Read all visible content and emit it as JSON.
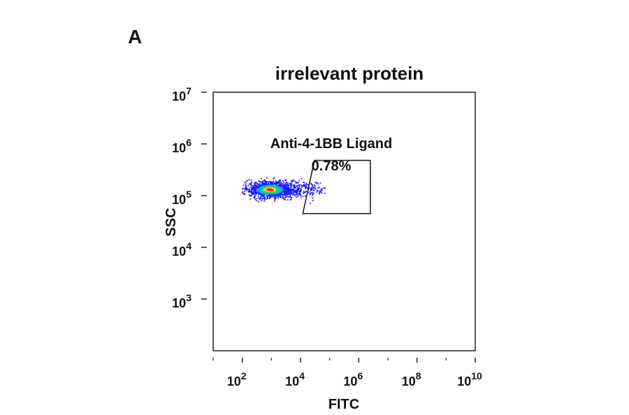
{
  "panel_label": "A",
  "chart_data": {
    "type": "scatter",
    "title": "irrelevant protein",
    "xlabel": "FITC",
    "ylabel": "SSC",
    "x_scale": "log",
    "y_scale": "log",
    "xlim": [
      10.0,
      10000000000.0
    ],
    "ylim": [
      100.0,
      10000000.0
    ],
    "x_ticks": [
      {
        "value": 100.0,
        "base": "10",
        "exp": "2"
      },
      {
        "value": 10000.0,
        "base": "10",
        "exp": "4"
      },
      {
        "value": 1000000.0,
        "base": "10",
        "exp": "6"
      },
      {
        "value": 100000000.0,
        "base": "10",
        "exp": "8"
      },
      {
        "value": 10000000000.0,
        "base": "10",
        "exp": "10"
      }
    ],
    "y_ticks": [
      {
        "value": 1000.0,
        "base": "10",
        "exp": "3"
      },
      {
        "value": 10000.0,
        "base": "10",
        "exp": "4"
      },
      {
        "value": 100000.0,
        "base": "10",
        "exp": "5"
      },
      {
        "value": 1000000.0,
        "base": "10",
        "exp": "6"
      },
      {
        "value": 10000000.0,
        "base": "10",
        "exp": "7"
      }
    ],
    "population": {
      "center_fitc": 900,
      "center_ssc": 130000,
      "fitc_range": [
        100,
        70000
      ],
      "ssc_range": [
        70000,
        230000
      ],
      "density_colors": [
        "#1a1aff",
        "#00a8ff",
        "#00e070",
        "#ffd000",
        "#ff2a00"
      ]
    },
    "gate": {
      "name": "Anti-4-1BB Ligand",
      "percent": "0.78%",
      "vertices": [
        [
          30000,
          480000
        ],
        [
          2500000,
          480000
        ],
        [
          2500000,
          45000
        ],
        [
          12000,
          45000
        ]
      ]
    },
    "grid": false,
    "legend": "none"
  }
}
